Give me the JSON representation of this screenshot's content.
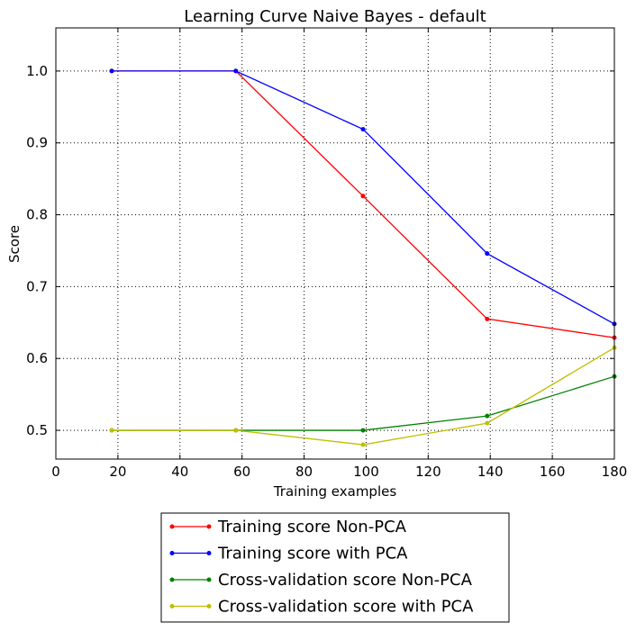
{
  "chart_data": {
    "type": "line",
    "title": "Learning Curve Naive Bayes - default",
    "xlabel": "Training examples",
    "ylabel": "Score",
    "xlim": [
      0,
      180
    ],
    "ylim": [
      0.46,
      1.06
    ],
    "xticks": [
      0,
      20,
      40,
      60,
      80,
      100,
      120,
      140,
      160,
      180
    ],
    "yticks": [
      0.5,
      0.6,
      0.7,
      0.8,
      0.9,
      1.0
    ],
    "ytick_labels": [
      "0.5",
      "0.6",
      "0.7",
      "0.8",
      "0.9",
      "1.0"
    ],
    "grid": true,
    "legend_position": "bottom-outside",
    "x": [
      18,
      58,
      99,
      139,
      180
    ],
    "series": [
      {
        "name": "Training score Non-PCA",
        "color": "#ff0000",
        "values": [
          1.0,
          1.0,
          0.826,
          0.655,
          0.629
        ]
      },
      {
        "name": "Training score with PCA",
        "color": "#0000ff",
        "values": [
          1.0,
          1.0,
          0.919,
          0.746,
          0.648
        ]
      },
      {
        "name": "Cross-validation score Non-PCA",
        "color": "#008000",
        "values": [
          0.5,
          0.5,
          0.5,
          0.52,
          0.575
        ]
      },
      {
        "name": "Cross-validation score with PCA",
        "color": "#bfbf00",
        "values": [
          0.5,
          0.5,
          0.48,
          0.51,
          0.615
        ]
      }
    ]
  }
}
